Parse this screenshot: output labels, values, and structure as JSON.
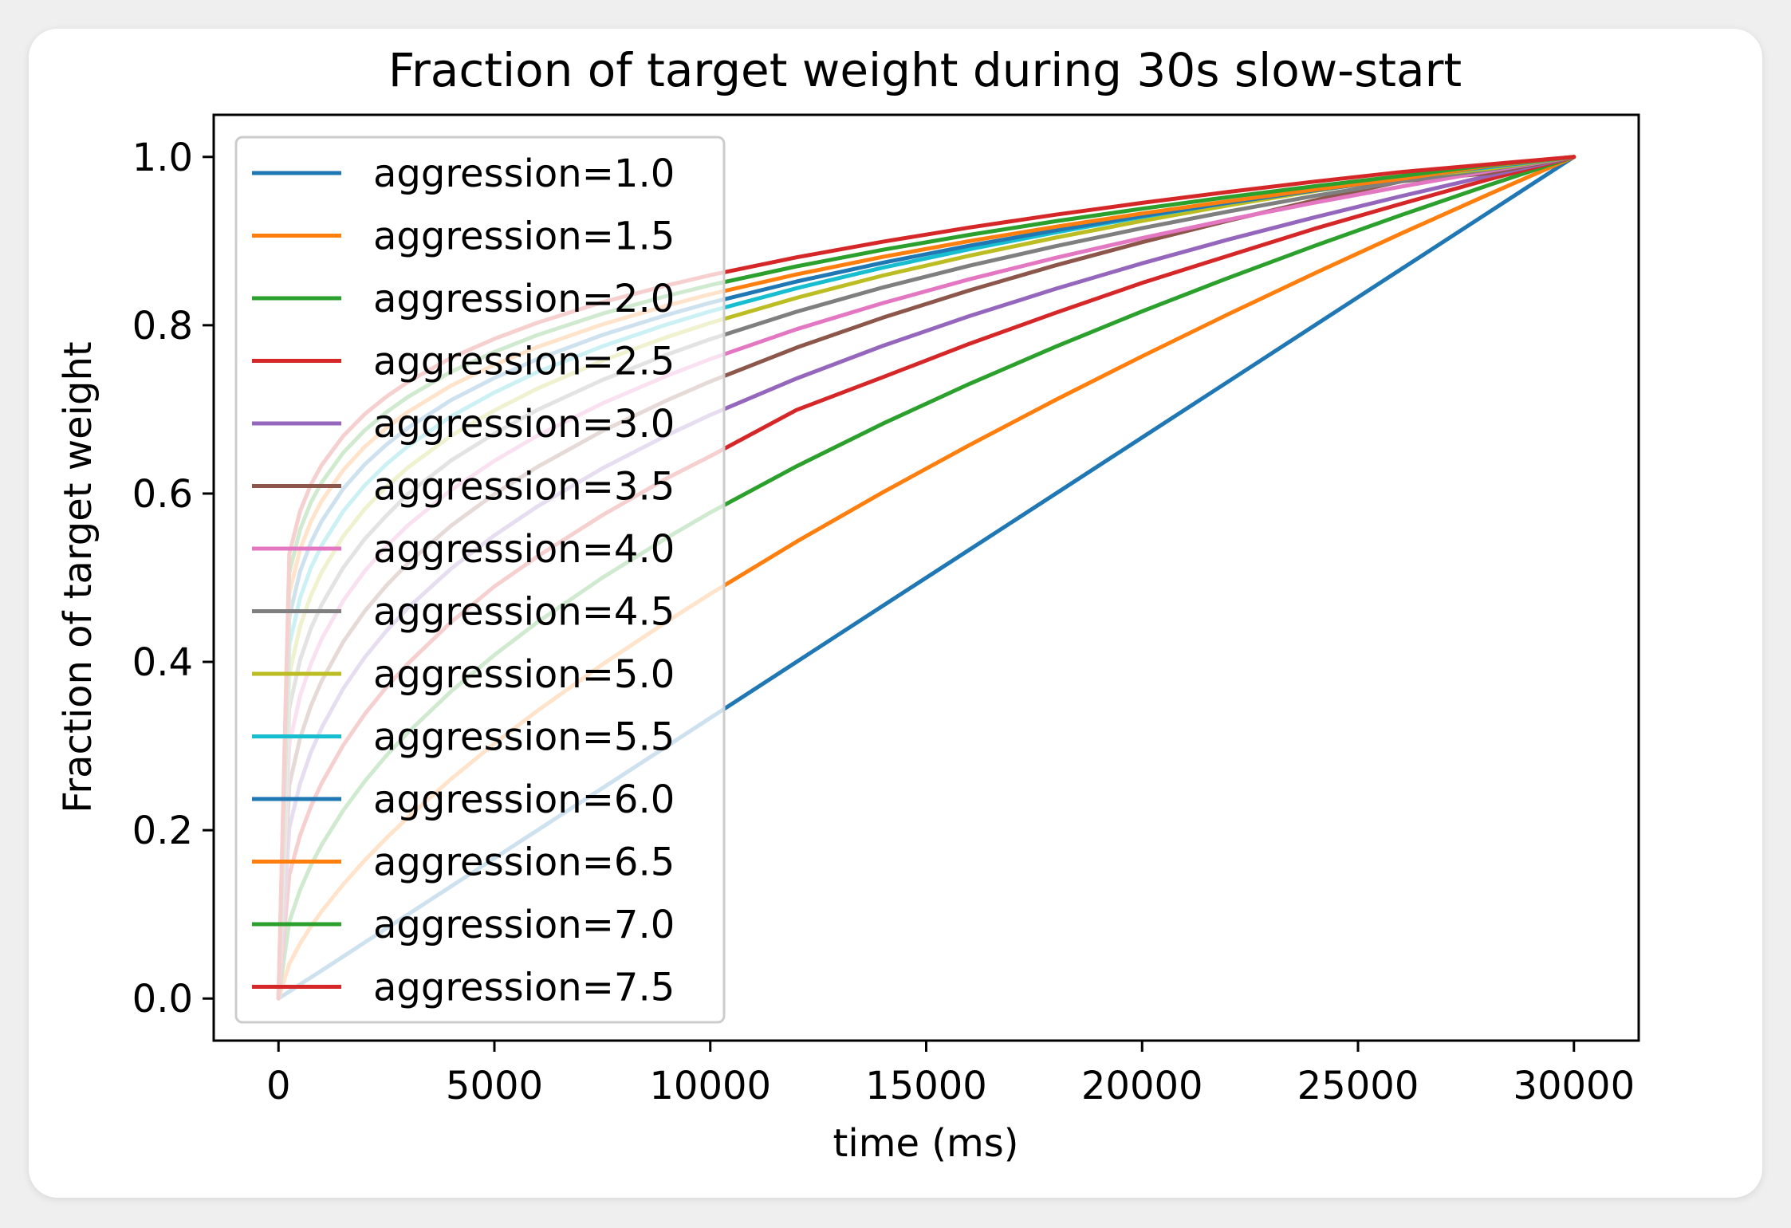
{
  "chart_data": {
    "type": "line",
    "title": "Fraction of target weight during 30s slow-start",
    "xlabel": "time (ms)",
    "ylabel": "Fraction of target weight",
    "xlim": [
      -1500,
      31500
    ],
    "ylim": [
      -0.05,
      1.05
    ],
    "xticks": [
      0,
      5000,
      10000,
      15000,
      20000,
      25000,
      30000
    ],
    "xtick_labels": [
      "0",
      "5000",
      "10000",
      "15000",
      "20000",
      "25000",
      "30000"
    ],
    "yticks": [
      0.0,
      0.2,
      0.4,
      0.6,
      0.8,
      1.0
    ],
    "ytick_labels": [
      "0.0",
      "0.2",
      "0.4",
      "0.6",
      "0.8",
      "1.0"
    ],
    "grid": false,
    "legend": "upper-left",
    "x": [
      0,
      250,
      500,
      750,
      1000,
      1500,
      2000,
      2500,
      3000,
      4000,
      5000,
      6000,
      7500,
      9000,
      10000,
      12000,
      14000,
      16000,
      18000,
      20000,
      22000,
      24000,
      26000,
      28000,
      30000
    ],
    "series": [
      {
        "name": "aggression=1.0",
        "color": "#1f77b4",
        "values": [
          0,
          0.0083,
          0.0167,
          0.025,
          0.0333,
          0.05,
          0.0667,
          0.0833,
          0.1,
          0.1333,
          0.1667,
          0.2,
          0.25,
          0.3,
          0.3333,
          0.4,
          0.4667,
          0.5333,
          0.6,
          0.6667,
          0.7333,
          0.8,
          0.8667,
          0.9333,
          1
        ]
      },
      {
        "name": "aggression=1.5",
        "color": "#ff7f0e",
        "values": [
          0,
          0.0411,
          0.0653,
          0.0855,
          0.1036,
          0.1357,
          0.1644,
          0.1907,
          0.2154,
          0.261,
          0.3029,
          0.342,
          0.3969,
          0.4481,
          0.4807,
          0.5429,
          0.6016,
          0.6576,
          0.7114,
          0.7631,
          0.8132,
          0.8618,
          0.909,
          0.955,
          1
        ]
      },
      {
        "name": "aggression=2.0",
        "color": "#2ca02c",
        "values": [
          0,
          0.0913,
          0.1291,
          0.1581,
          0.1826,
          0.2236,
          0.2582,
          0.2887,
          0.3162,
          0.3651,
          0.4082,
          0.4472,
          0.5,
          0.5477,
          0.5774,
          0.6325,
          0.6831,
          0.7303,
          0.7746,
          0.8165,
          0.8563,
          0.8944,
          0.9309,
          0.9661,
          1
        ]
      },
      {
        "name": "aggression=2.5",
        "color": "#d62728",
        "values": [
          0,
          0.1469,
          0.1939,
          0.228,
          0.2559,
          0.301,
          0.3381,
          0.37,
          0.3981,
          0.4473,
          0.4896,
          0.5253,
          0.5743,
          0.6183,
          0.6444,
          0.6993,
          0.7384,
          0.778,
          0.8148,
          0.8503,
          0.8827,
          0.9148,
          0.9443,
          0.9729,
          1
        ]
      },
      {
        "name": "aggression=3.0",
        "color": "#9467bd",
        "values": [
          0,
          0.2027,
          0.2554,
          0.2924,
          0.3218,
          0.3684,
          0.4055,
          0.4368,
          0.4642,
          0.5109,
          0.5503,
          0.5848,
          0.63,
          0.6694,
          0.6934,
          0.7368,
          0.7756,
          0.8109,
          0.8434,
          0.8736,
          0.9019,
          0.9283,
          0.9534,
          0.9772,
          1
        ]
      },
      {
        "name": "aggression=3.5",
        "color": "#8c564b",
        "values": [
          0,
          0.2537,
          0.3094,
          0.3476,
          0.3774,
          0.4239,
          0.4604,
          0.4908,
          0.5172,
          0.562,
          0.5994,
          0.6318,
          0.6742,
          0.7109,
          0.7332,
          0.7734,
          0.8091,
          0.8415,
          0.8712,
          0.8987,
          0.9243,
          0.9484,
          0.971,
          0.9805,
          1
        ]
      },
      {
        "name": "aggression=4.0",
        "color": "#e377c2",
        "values": [
          0,
          0.3021,
          0.3593,
          0.3976,
          0.4273,
          0.4729,
          0.5081,
          0.5373,
          0.5623,
          0.6043,
          0.6389,
          0.6687,
          0.7071,
          0.74,
          0.7598,
          0.7953,
          0.8264,
          0.8546,
          0.8801,
          0.9036,
          0.9254,
          0.9457,
          0.9647,
          0.9829,
          1
        ]
      },
      {
        "name": "aggression=4.5",
        "color": "#7f7f7f",
        "values": [
          0,
          0.3453,
          0.4022,
          0.4396,
          0.468,
          0.5121,
          0.5461,
          0.5738,
          0.5997,
          0.6394,
          0.6713,
          0.6995,
          0.735,
          0.7652,
          0.7834,
          0.8161,
          0.845,
          0.8707,
          0.894,
          0.9154,
          0.9352,
          0.9537,
          0.9709,
          0.9848,
          1
        ]
      },
      {
        "name": "aggression=5.0",
        "color": "#bcbd22",
        "values": [
          0,
          0.385,
          0.4421,
          0.4788,
          0.5065,
          0.5493,
          0.5818,
          0.6082,
          0.631,
          0.6687,
          0.6988,
          0.7248,
          0.7579,
          0.786,
          0.8027,
          0.8326,
          0.8591,
          0.8826,
          0.9041,
          0.924,
          0.9425,
          0.9595,
          0.9755,
          0.9859,
          1
        ]
      },
      {
        "name": "aggression=5.5",
        "color": "#17becf",
        "values": [
          0,
          0.42,
          0.476,
          0.5117,
          0.5384,
          0.5791,
          0.6099,
          0.6349,
          0.6563,
          0.6918,
          0.7201,
          0.7444,
          0.775,
          0.801,
          0.8165,
          0.844,
          0.8685,
          0.8904,
          0.9103,
          0.9287,
          0.9458,
          0.9617,
          0.9767,
          0.9876,
          1
        ]
      },
      {
        "name": "aggression=6.0",
        "color": "#1f77b4",
        "values": [
          0,
          0.4532,
          0.5075,
          0.5417,
          0.5673,
          0.6057,
          0.6347,
          0.6581,
          0.6781,
          0.7111,
          0.7373,
          0.7598,
          0.7884,
          0.8124,
          0.8267,
          0.852,
          0.8743,
          0.8945,
          0.9128,
          0.9298,
          0.9455,
          0.9603,
          0.9741,
          0.9886,
          1
        ]
      },
      {
        "name": "aggression=6.5",
        "color": "#ff7f0e",
        "values": [
          0,
          0.4812,
          0.5335,
          0.5666,
          0.5912,
          0.628,
          0.6557,
          0.6781,
          0.6971,
          0.7283,
          0.753,
          0.7742,
          0.801,
          0.8234,
          0.8368,
          0.8604,
          0.8813,
          0.9,
          0.9171,
          0.9328,
          0.9474,
          0.9611,
          0.9739,
          0.9893,
          1
        ]
      },
      {
        "name": "aggression=7.0",
        "color": "#2ca02c",
        "values": [
          0,
          0.506,
          0.5571,
          0.5893,
          0.6131,
          0.6486,
          0.6753,
          0.6967,
          0.7149,
          0.7447,
          0.7683,
          0.7884,
          0.8137,
          0.8349,
          0.8476,
          0.87,
          0.8897,
          0.9074,
          0.9236,
          0.9385,
          0.9523,
          0.9652,
          0.9773,
          0.9902,
          1
        ]
      },
      {
        "name": "aggression=7.5",
        "color": "#d62728",
        "values": [
          0,
          0.5282,
          0.579,
          0.6106,
          0.6339,
          0.6686,
          0.6945,
          0.7152,
          0.7327,
          0.7613,
          0.7839,
          0.8031,
          0.8273,
          0.8474,
          0.8595,
          0.8807,
          0.8993,
          0.9161,
          0.9314,
          0.9454,
          0.9585,
          0.9707,
          0.9821,
          0.9911,
          1
        ]
      }
    ]
  }
}
